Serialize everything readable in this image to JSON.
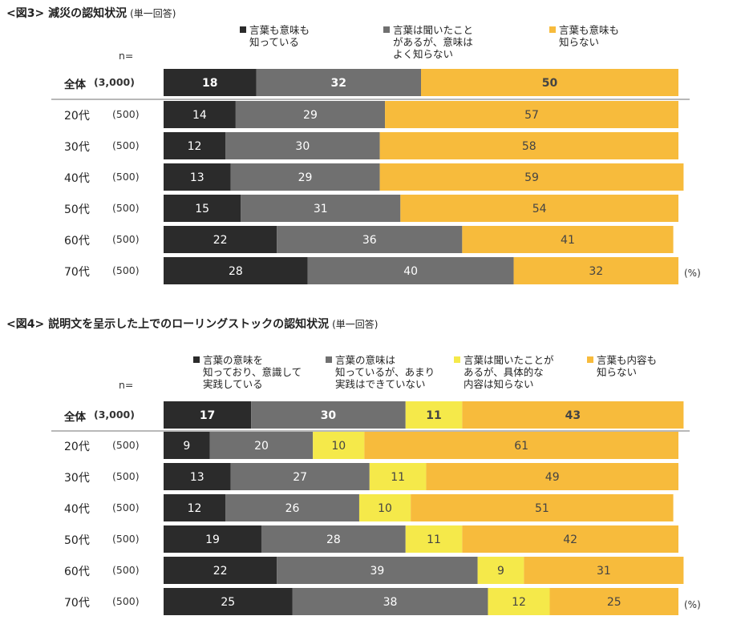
{
  "colors": {
    "black": "#2b2b2b",
    "gray": "#707070",
    "yellow": "#f5e94a",
    "orange": "#f7bb3c"
  },
  "chart_data": [
    {
      "type": "bar",
      "orientation": "horizontal-stacked-100",
      "title": "<図3> 減災の認知状況",
      "subtitle": "(単一回答)",
      "n_label": "n=",
      "unit": "(%)",
      "categories": [
        "全体",
        "20代",
        "30代",
        "40代",
        "50代",
        "60代",
        "70代"
      ],
      "n_values": [
        "(3,000)",
        "(500)",
        "(500)",
        "(500)",
        "(500)",
        "(500)",
        "(500)"
      ],
      "series": [
        {
          "name": "言葉も意味も\n知っている",
          "color": "#2b2b2b",
          "values": [
            18,
            14,
            12,
            13,
            15,
            22,
            28
          ]
        },
        {
          "name": "言葉は聞いたこと\nがあるが、意味は\nよく知らない",
          "color": "#707070",
          "values": [
            32,
            29,
            30,
            29,
            31,
            36,
            40
          ]
        },
        {
          "name": "言葉も意味も\n知らない",
          "color": "#f7bb3c",
          "values": [
            50,
            57,
            58,
            59,
            54,
            41,
            32
          ]
        }
      ],
      "xlim": [
        0,
        100
      ]
    },
    {
      "type": "bar",
      "orientation": "horizontal-stacked-100",
      "title": "<図4> 説明文を呈示した上でのローリングストックの認知状況",
      "subtitle": "(単一回答)",
      "n_label": "n=",
      "unit": "(%)",
      "categories": [
        "全体",
        "20代",
        "30代",
        "40代",
        "50代",
        "60代",
        "70代"
      ],
      "n_values": [
        "(3,000)",
        "(500)",
        "(500)",
        "(500)",
        "(500)",
        "(500)",
        "(500)"
      ],
      "series": [
        {
          "name": "言葉の意味を\n知っており、意識して\n実践している",
          "color": "#2b2b2b",
          "values": [
            17,
            9,
            13,
            12,
            19,
            22,
            25
          ]
        },
        {
          "name": "言葉の意味は\n知っているが、あまり\n実践はできていない",
          "color": "#707070",
          "values": [
            30,
            20,
            27,
            26,
            28,
            39,
            38
          ]
        },
        {
          "name": "言葉は聞いたことが\nあるが、具体的な\n内容は知らない",
          "color": "#f5e94a",
          "values": [
            11,
            10,
            11,
            10,
            11,
            9,
            12
          ]
        },
        {
          "name": "言葉も内容も\n知らない",
          "color": "#f7bb3c",
          "values": [
            43,
            61,
            49,
            51,
            42,
            31,
            25
          ]
        }
      ],
      "xlim": [
        0,
        100
      ]
    }
  ]
}
